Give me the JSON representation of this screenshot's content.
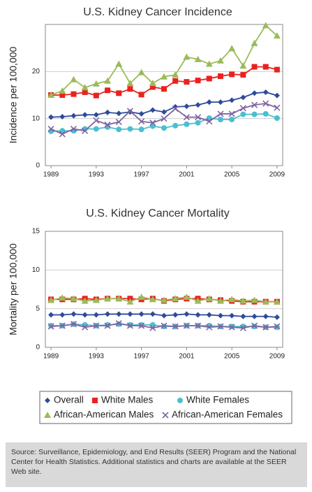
{
  "chart_data": [
    {
      "type": "line",
      "title": "U.S. Kidney Cancer Incidence",
      "y_label": "Incidence per 100,000",
      "x": [
        1989,
        1990,
        1991,
        1992,
        1993,
        1994,
        1995,
        1996,
        1997,
        1998,
        1999,
        2000,
        2001,
        2002,
        2003,
        2004,
        2005,
        2006,
        2007,
        2008,
        2009
      ],
      "xlim": [
        1988.5,
        2009.5
      ],
      "xticks": [
        1989,
        1993,
        1997,
        2001,
        2005,
        2009
      ],
      "ylim": [
        0,
        30
      ],
      "yticks": [
        0,
        10,
        20
      ],
      "grid": true,
      "series": [
        {
          "name": "Overall",
          "color": "#2e4b9b",
          "marker": "diamond",
          "values": [
            10.3,
            10.4,
            10.6,
            10.8,
            10.8,
            11.3,
            11.1,
            11.4,
            11.0,
            11.8,
            11.4,
            12.5,
            12.6,
            12.9,
            13.5,
            13.5,
            13.9,
            14.5,
            15.4,
            15.6,
            14.9
          ]
        },
        {
          "name": "White Males",
          "color": "#e8231f",
          "marker": "square",
          "values": [
            15.0,
            15.0,
            15.2,
            15.6,
            14.9,
            16.0,
            15.4,
            16.3,
            15.1,
            16.7,
            16.3,
            18.0,
            17.8,
            18.1,
            18.5,
            19.0,
            19.4,
            19.3,
            21.0,
            21.0,
            20.4
          ]
        },
        {
          "name": "White Females",
          "color": "#4bbfd0",
          "marker": "circle",
          "values": [
            7.3,
            7.4,
            7.4,
            7.8,
            7.8,
            8.2,
            7.7,
            7.8,
            7.7,
            8.4,
            8.0,
            8.5,
            8.8,
            9.1,
            10.1,
            9.8,
            9.8,
            10.9,
            10.9,
            11.0,
            10.1
          ]
        },
        {
          "name": "African-American Males",
          "color": "#9bbb59",
          "marker": "triangle",
          "values": [
            15.0,
            15.9,
            18.3,
            16.6,
            17.4,
            18.0,
            21.6,
            17.5,
            19.8,
            17.5,
            18.9,
            19.3,
            23.1,
            22.6,
            21.6,
            22.3,
            24.9,
            21.2,
            26.0,
            29.8,
            27.6
          ]
        },
        {
          "name": "African-American Females",
          "color": "#8064a2",
          "marker": "x",
          "values": [
            7.8,
            6.7,
            7.8,
            7.4,
            9.6,
            8.7,
            9.3,
            11.6,
            9.4,
            9.1,
            10.0,
            12.1,
            10.3,
            10.3,
            9.4,
            11.0,
            11.0,
            12.2,
            12.9,
            13.2,
            12.3
          ]
        }
      ]
    },
    {
      "type": "line",
      "title": "U.S. Kidney Cancer Mortality",
      "y_label": "Mortality per 100,000",
      "x": [
        1989,
        1990,
        1991,
        1992,
        1993,
        1994,
        1995,
        1996,
        1997,
        1998,
        1999,
        2000,
        2001,
        2002,
        2003,
        2004,
        2005,
        2006,
        2007,
        2008,
        2009
      ],
      "xlim": [
        1988.5,
        2009.5
      ],
      "xticks": [
        1989,
        1993,
        1997,
        2001,
        2005,
        2009
      ],
      "ylim": [
        0,
        15
      ],
      "yticks": [
        0,
        5,
        10,
        15
      ],
      "grid": true,
      "series": [
        {
          "name": "Overall",
          "color": "#2e4b9b",
          "marker": "diamond",
          "values": [
            4.2,
            4.2,
            4.3,
            4.2,
            4.2,
            4.3,
            4.3,
            4.3,
            4.3,
            4.3,
            4.1,
            4.2,
            4.3,
            4.2,
            4.2,
            4.1,
            4.1,
            4.0,
            4.0,
            4.0,
            3.9
          ]
        },
        {
          "name": "White Males",
          "color": "#e8231f",
          "marker": "square",
          "values": [
            6.2,
            6.2,
            6.2,
            6.3,
            6.2,
            6.3,
            6.3,
            6.3,
            6.2,
            6.3,
            6.0,
            6.2,
            6.3,
            6.3,
            6.2,
            6.1,
            6.0,
            5.9,
            5.9,
            5.9,
            5.9
          ]
        },
        {
          "name": "White Females",
          "color": "#4bbfd0",
          "marker": "circle",
          "values": [
            2.8,
            2.8,
            3.0,
            2.9,
            2.8,
            2.9,
            3.0,
            2.9,
            2.9,
            2.9,
            2.7,
            2.7,
            2.8,
            2.8,
            2.8,
            2.7,
            2.7,
            2.7,
            2.7,
            2.6,
            2.6
          ]
        },
        {
          "name": "African-American Males",
          "color": "#9bbb59",
          "marker": "triangle",
          "values": [
            6.1,
            6.4,
            6.3,
            6.0,
            6.1,
            6.3,
            6.3,
            5.9,
            6.5,
            6.2,
            6.1,
            6.3,
            6.5,
            6.0,
            6.3,
            6.0,
            6.2,
            6.0,
            6.1,
            5.9,
            5.9
          ]
        },
        {
          "name": "African-American Females",
          "color": "#8064a2",
          "marker": "x",
          "values": [
            2.7,
            2.8,
            3.0,
            2.6,
            2.8,
            2.8,
            3.1,
            2.8,
            2.8,
            2.5,
            2.8,
            2.7,
            2.8,
            2.8,
            2.6,
            2.7,
            2.6,
            2.5,
            2.8,
            2.6,
            2.7
          ]
        }
      ]
    }
  ],
  "note": "Source: Surveillance, Epidemiology, and End Results (SEER) Program and the National Center for Health Statistics. Additional statistics and charts are available at the SEER Web site."
}
